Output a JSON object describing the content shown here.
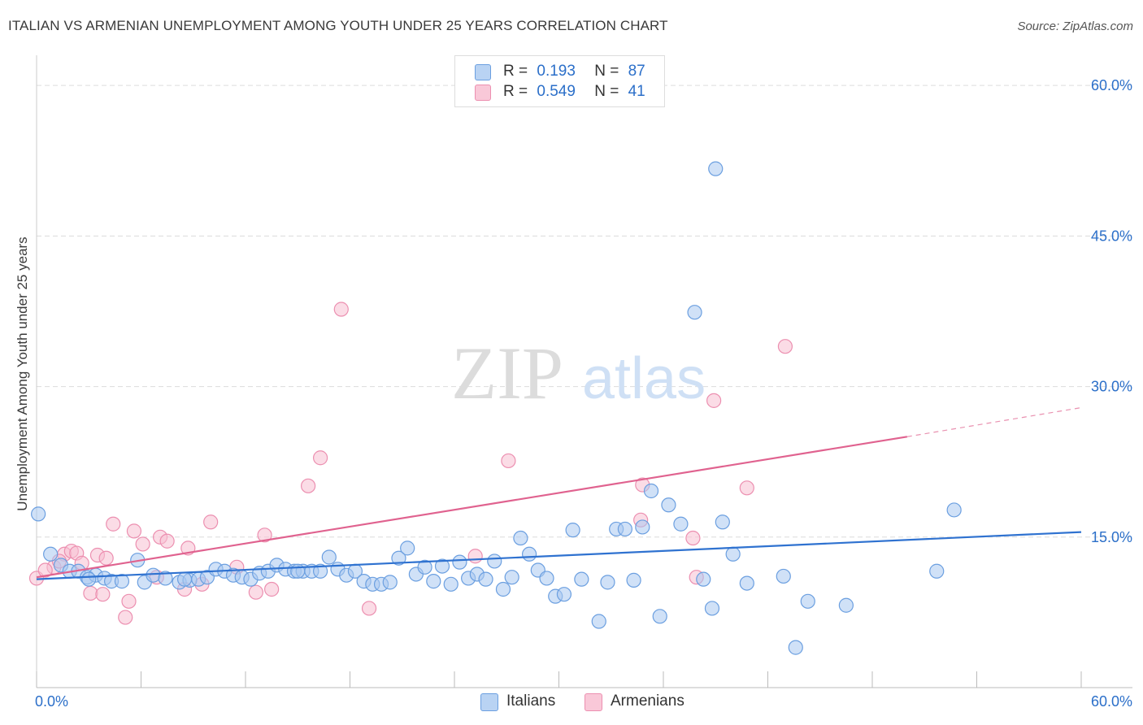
{
  "title": "ITALIAN VS ARMENIAN UNEMPLOYMENT AMONG YOUTH UNDER 25 YEARS CORRELATION CHART",
  "source": "Source: ZipAtlas.com",
  "watermark": {
    "zip": "ZIP",
    "atlas": "atlas"
  },
  "legend": {
    "italians": {
      "r_label": "R =",
      "r_value": "0.193",
      "n_label": "N =",
      "n_value": "87"
    },
    "armenians": {
      "r_label": "R =",
      "r_value": "0.549",
      "n_label": "N =",
      "n_value": "41"
    }
  },
  "bottom_legend": {
    "italians": "Italians",
    "armenians": "Armenians"
  },
  "colors": {
    "italians_fill": "#a9c8f0",
    "italians_stroke": "#6b9fe0",
    "italians_line": "#2f72d0",
    "armenians_fill": "#f7bfd1",
    "armenians_stroke": "#ec8fb0",
    "armenians_line": "#e0628f",
    "axis_text": "#2b6fc9",
    "grid": "#dcdcdc"
  },
  "chart_data": {
    "type": "scatter",
    "title": "ITALIAN VS ARMENIAN UNEMPLOYMENT AMONG YOUTH UNDER 25 YEARS CORRELATION CHART",
    "xlabel": "",
    "ylabel": "Unemployment Among Youth under 25 years",
    "xlim": [
      0,
      60
    ],
    "ylim": [
      0,
      60
    ],
    "x_tick_labels": [
      "0.0%",
      "60.0%"
    ],
    "y_tick_labels": [
      "15.0%",
      "30.0%",
      "45.0%",
      "60.0%"
    ],
    "y_ticks": [
      15,
      30,
      45,
      60
    ],
    "grid": true,
    "legend_position": "top-center",
    "series": [
      {
        "name": "Italians",
        "points": [
          [
            0.1,
            17.3
          ],
          [
            0.8,
            13.3
          ],
          [
            1.4,
            12.2
          ],
          [
            1.9,
            11.6
          ],
          [
            2.4,
            11.6
          ],
          [
            2.9,
            11.0
          ],
          [
            3.4,
            11.2
          ],
          [
            3.9,
            10.9
          ],
          [
            4.3,
            10.6
          ],
          [
            4.9,
            10.6
          ],
          [
            5.8,
            12.7
          ],
          [
            6.2,
            10.5
          ],
          [
            6.7,
            11.2
          ],
          [
            7.4,
            10.9
          ],
          [
            8.2,
            10.5
          ],
          [
            8.8,
            10.7
          ],
          [
            9.3,
            10.8
          ],
          [
            9.8,
            11.0
          ],
          [
            10.3,
            11.8
          ],
          [
            10.8,
            11.6
          ],
          [
            11.3,
            11.2
          ],
          [
            11.8,
            11.0
          ],
          [
            12.3,
            10.8
          ],
          [
            12.8,
            11.4
          ],
          [
            13.3,
            11.6
          ],
          [
            13.8,
            12.2
          ],
          [
            14.3,
            11.8
          ],
          [
            14.8,
            11.6
          ],
          [
            15.3,
            11.6
          ],
          [
            15.8,
            11.6
          ],
          [
            16.3,
            11.6
          ],
          [
            16.8,
            13.0
          ],
          [
            17.3,
            11.8
          ],
          [
            17.8,
            11.2
          ],
          [
            18.3,
            11.6
          ],
          [
            18.8,
            10.6
          ],
          [
            19.3,
            10.3
          ],
          [
            19.8,
            10.3
          ],
          [
            20.3,
            10.5
          ],
          [
            20.8,
            12.9
          ],
          [
            21.3,
            13.9
          ],
          [
            21.8,
            11.3
          ],
          [
            22.3,
            12.0
          ],
          [
            22.8,
            10.6
          ],
          [
            23.3,
            12.1
          ],
          [
            23.8,
            10.3
          ],
          [
            24.3,
            12.5
          ],
          [
            24.8,
            10.9
          ],
          [
            25.3,
            11.3
          ],
          [
            25.8,
            10.8
          ],
          [
            26.3,
            12.6
          ],
          [
            26.8,
            9.8
          ],
          [
            27.3,
            11.0
          ],
          [
            27.8,
            14.9
          ],
          [
            28.3,
            13.3
          ],
          [
            28.8,
            11.7
          ],
          [
            29.3,
            10.9
          ],
          [
            29.8,
            9.1
          ],
          [
            30.3,
            9.3
          ],
          [
            30.8,
            15.7
          ],
          [
            31.3,
            10.8
          ],
          [
            32.3,
            6.6
          ],
          [
            32.8,
            10.5
          ],
          [
            33.3,
            15.8
          ],
          [
            33.8,
            15.8
          ],
          [
            34.3,
            10.7
          ],
          [
            34.8,
            16.0
          ],
          [
            35.3,
            19.6
          ],
          [
            35.8,
            7.1
          ],
          [
            36.3,
            18.2
          ],
          [
            37.0,
            16.3
          ],
          [
            37.8,
            37.4
          ],
          [
            38.3,
            10.8
          ],
          [
            38.8,
            7.9
          ],
          [
            39.0,
            51.7
          ],
          [
            39.4,
            16.5
          ],
          [
            40.0,
            13.3
          ],
          [
            40.8,
            10.4
          ],
          [
            42.9,
            11.1
          ],
          [
            43.6,
            4.0
          ],
          [
            44.3,
            8.6
          ],
          [
            46.5,
            8.2
          ],
          [
            51.7,
            11.6
          ],
          [
            52.7,
            17.7
          ],
          [
            3.0,
            10.8
          ],
          [
            8.5,
            10.8
          ],
          [
            15.0,
            11.6
          ]
        ]
      },
      {
        "name": "Armenians",
        "points": [
          [
            0.0,
            10.9
          ],
          [
            1.0,
            12.0
          ],
          [
            1.6,
            13.3
          ],
          [
            2.0,
            13.6
          ],
          [
            2.3,
            13.4
          ],
          [
            2.6,
            12.4
          ],
          [
            3.1,
            9.4
          ],
          [
            3.5,
            13.2
          ],
          [
            4.0,
            12.9
          ],
          [
            3.8,
            9.3
          ],
          [
            4.4,
            16.3
          ],
          [
            5.1,
            7.0
          ],
          [
            5.3,
            8.6
          ],
          [
            5.6,
            15.6
          ],
          [
            6.1,
            14.3
          ],
          [
            6.9,
            11.0
          ],
          [
            7.1,
            15.0
          ],
          [
            7.5,
            14.6
          ],
          [
            8.5,
            9.8
          ],
          [
            8.7,
            13.9
          ],
          [
            9.5,
            10.3
          ],
          [
            10.0,
            16.5
          ],
          [
            11.5,
            12.0
          ],
          [
            12.6,
            9.5
          ],
          [
            13.1,
            15.2
          ],
          [
            13.5,
            9.8
          ],
          [
            15.6,
            20.1
          ],
          [
            16.3,
            22.9
          ],
          [
            17.5,
            37.7
          ],
          [
            19.1,
            7.9
          ],
          [
            25.2,
            13.1
          ],
          [
            27.1,
            22.6
          ],
          [
            34.8,
            20.2
          ],
          [
            34.7,
            16.7
          ],
          [
            37.7,
            14.9
          ],
          [
            37.9,
            11.0
          ],
          [
            38.9,
            28.6
          ],
          [
            40.8,
            19.9
          ],
          [
            43.0,
            34.0
          ],
          [
            0.5,
            11.7
          ],
          [
            1.3,
            12.6
          ]
        ]
      }
    ],
    "trend_lines": [
      {
        "name": "Italians",
        "x": [
          0,
          60
        ],
        "y": [
          10.8,
          15.5
        ]
      },
      {
        "name": "Armenians",
        "x": [
          0,
          50
        ],
        "y": [
          11.0,
          25.0
        ],
        "dashed_extension_to": [
          60,
          27.9
        ]
      }
    ]
  }
}
